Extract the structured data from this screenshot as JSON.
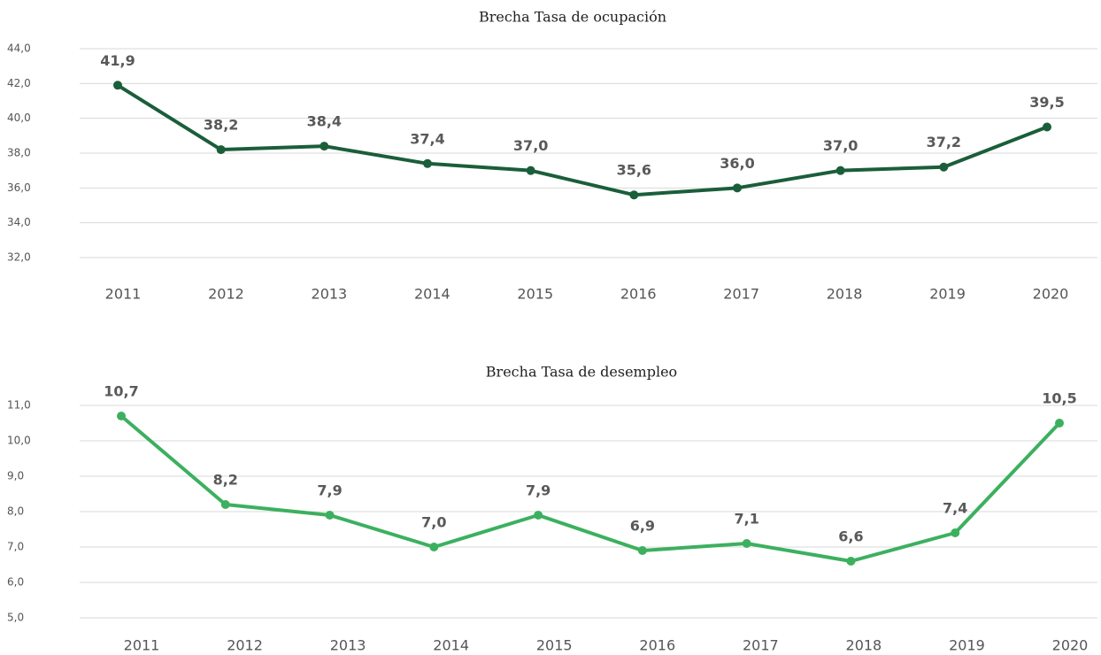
{
  "chart_data": [
    {
      "type": "line",
      "title": "Brecha Tasa de ocupación",
      "categories": [
        "2011",
        "2012",
        "2013",
        "2014",
        "2015",
        "2016",
        "2017",
        "2018",
        "2019",
        "2020"
      ],
      "series": [
        {
          "name": "Brecha Tasa de ocupación",
          "color": "#1a5e3a",
          "values": [
            41.9,
            38.2,
            38.4,
            37.4,
            37.0,
            35.6,
            36.0,
            37.0,
            37.2,
            39.5
          ],
          "value_labels": [
            "41,9",
            "38,2",
            "38,4",
            "37,4",
            "37,0",
            "35,6",
            "36,0",
            "37,0",
            "37,2",
            "39,5"
          ]
        }
      ],
      "ylim": [
        32,
        44
      ],
      "yticks": [
        {
          "value": 32,
          "label": "32,0"
        },
        {
          "value": 34,
          "label": "34,0"
        },
        {
          "value": 36,
          "label": "36,0"
        },
        {
          "value": 38,
          "label": "38,0"
        },
        {
          "value": 40,
          "label": "40,0"
        },
        {
          "value": 42,
          "label": "42,0"
        },
        {
          "value": 44,
          "label": "44,0"
        }
      ],
      "grid": true
    },
    {
      "type": "line",
      "title": "Brecha Tasa de desempleo",
      "categories": [
        "2011",
        "2012",
        "2013",
        "2014",
        "2015",
        "2016",
        "2017",
        "2018",
        "2019",
        "2020"
      ],
      "series": [
        {
          "name": "Brecha Tasa de desempleo",
          "color": "#3cb05f",
          "values": [
            10.7,
            8.2,
            7.9,
            7.0,
            7.9,
            6.9,
            7.1,
            6.6,
            7.4,
            10.5
          ],
          "value_labels": [
            "10,7",
            "8,2",
            "7,9",
            "7,0",
            "7,9",
            "6,9",
            "7,1",
            "6,6",
            "7,4",
            "10,5"
          ]
        }
      ],
      "ylim": [
        5,
        11
      ],
      "yticks": [
        {
          "value": 5,
          "label": "5,0"
        },
        {
          "value": 6,
          "label": "6,0"
        },
        {
          "value": 7,
          "label": "7,0"
        },
        {
          "value": 8,
          "label": "8,0"
        },
        {
          "value": 9,
          "label": "9,0"
        },
        {
          "value": 10,
          "label": "10,0"
        },
        {
          "value": 11,
          "label": "11,0"
        }
      ],
      "grid": true
    }
  ]
}
